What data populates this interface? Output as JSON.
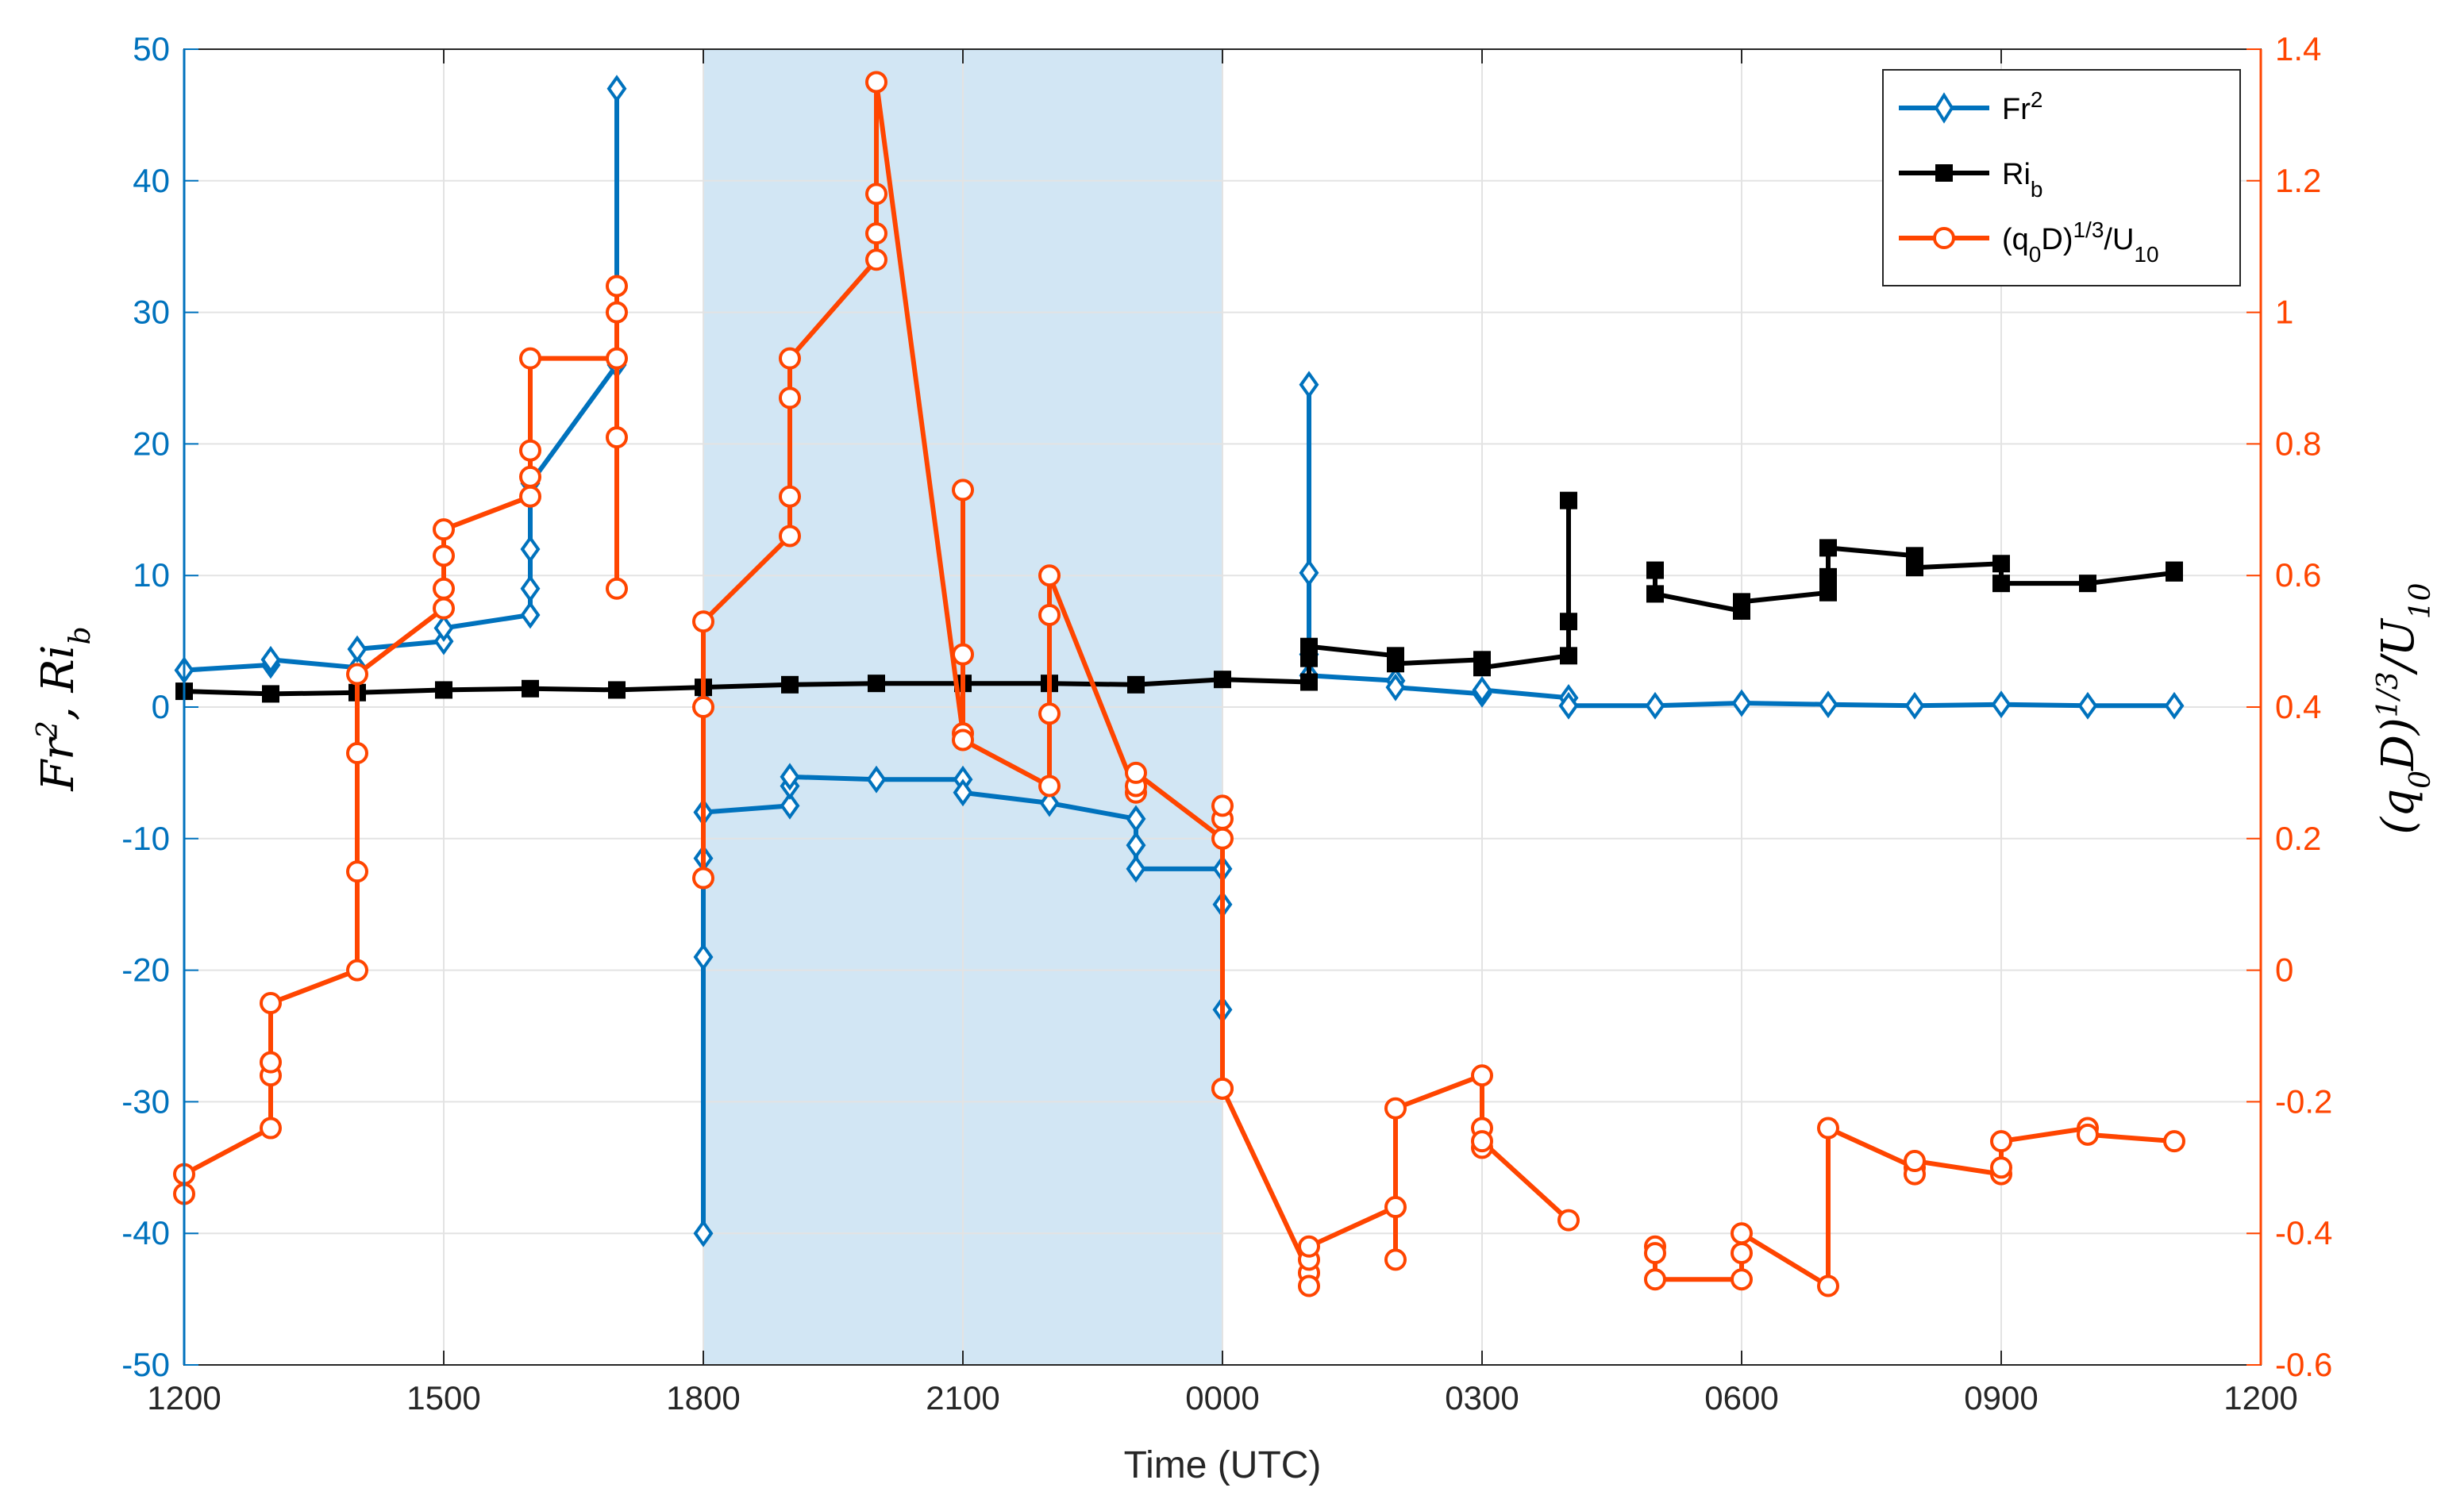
{
  "chart_data": {
    "type": "line",
    "title": "",
    "xlabel": "Time (UTC)",
    "x_range_hours": [
      0,
      24
    ],
    "x_tick_labels": [
      "1200",
      "1500",
      "1800",
      "2100",
      "0000",
      "0300",
      "0600",
      "0900",
      "1200"
    ],
    "y_left": {
      "label_main": "Fr",
      "label_sup": "2",
      "label_sep": ",  ",
      "label_main2": "Ri",
      "label_sub": "b",
      "ylim": [
        -50,
        50
      ],
      "ticks": [
        "50",
        "40",
        "30",
        "20",
        "10",
        "0",
        "-10",
        "-20",
        "-30",
        "-40",
        "-50"
      ],
      "color": "#0072BD"
    },
    "y_right": {
      "label_open": "(q",
      "label_sub0": "0",
      "label_mid": "D)",
      "label_sup": "1/3",
      "label_slash": "/U",
      "label_sub10": "10",
      "ylim": [
        -0.6,
        1.4
      ],
      "ticks": [
        "1.4",
        "1.2",
        "1",
        "0.8",
        "0.6",
        "0.4",
        "0.2",
        "0",
        "-0.2",
        "-0.4",
        "-0.6"
      ],
      "color": "#FF4500"
    },
    "shaded_interval_hours": [
      6.0,
      12.0
    ],
    "shade_color": "#d2e6f4",
    "legend": {
      "position": "top-right",
      "fr_main": "Fr",
      "fr_sup": "2",
      "ri_main": "Ri",
      "ri_sub": "b",
      "q_open": "(q",
      "q_sub0": "0",
      "q_mid": "D)",
      "q_sup": "1/3",
      "q_slash": "/U",
      "q_sub10": "10"
    },
    "series": [
      {
        "name": "Fr2",
        "axis": "left",
        "color": "#0072BD",
        "marker": "diamond",
        "segments": [
          [
            [
              0,
              2.8
            ],
            [
              1,
              3.2
            ],
            [
              1,
              3.6
            ],
            [
              2,
              3.0
            ],
            [
              2,
              4.4
            ],
            [
              3,
              5.0
            ],
            [
              3,
              6.0
            ],
            [
              4,
              7.0
            ],
            [
              4,
              9.0
            ],
            [
              4,
              12.0
            ],
            [
              4,
              17.0
            ],
            [
              5,
              26.0
            ],
            [
              5,
              47.0
            ]
          ],
          [
            [
              6,
              0.3
            ],
            [
              6,
              -8.0
            ],
            [
              6,
              -11.5
            ],
            [
              6,
              -19.0
            ],
            [
              6,
              -40.0
            ]
          ],
          [
            [
              6,
              -8.0
            ],
            [
              7,
              -7.5
            ],
            [
              7,
              -6.0
            ],
            [
              7,
              -5.3
            ],
            [
              8,
              -5.5
            ],
            [
              9,
              -5.5
            ],
            [
              9,
              -6.5
            ],
            [
              10,
              -7.3
            ],
            [
              11,
              -8.5
            ],
            [
              11,
              -10.5
            ],
            [
              11,
              -12.3
            ],
            [
              12,
              -12.3
            ],
            [
              12,
              -15.0
            ],
            [
              12,
              -23.0
            ]
          ],
          [
            [
              13,
              4.0
            ],
            [
              13,
              10.2
            ],
            [
              13,
              24.5
            ]
          ],
          [
            [
              13,
              2.4
            ],
            [
              14,
              2.0
            ],
            [
              14,
              1.5
            ],
            [
              15,
              1.0
            ],
            [
              15,
              1.3
            ],
            [
              16,
              0.7
            ],
            [
              16,
              0.1
            ],
            [
              17,
              0.1
            ],
            [
              18,
              0.3
            ],
            [
              19,
              0.2
            ],
            [
              20,
              0.1
            ],
            [
              21,
              0.2
            ],
            [
              22,
              0.1
            ],
            [
              23,
              0.1
            ]
          ]
        ]
      },
      {
        "name": "Rib",
        "axis": "left",
        "color": "#000000",
        "marker": "square",
        "segments": [
          [
            [
              0,
              1.2
            ],
            [
              1,
              1.0
            ],
            [
              2,
              1.1
            ],
            [
              3,
              1.3
            ],
            [
              4,
              1.4
            ],
            [
              5,
              1.3
            ],
            [
              6,
              1.5
            ],
            [
              7,
              1.7
            ],
            [
              8,
              1.8
            ],
            [
              9,
              1.8
            ],
            [
              10,
              1.8
            ],
            [
              11,
              1.7
            ],
            [
              12,
              2.1
            ],
            [
              13,
              1.9
            ],
            [
              13,
              3.7
            ],
            [
              13,
              4.6
            ],
            [
              14,
              3.9
            ],
            [
              14,
              3.3
            ],
            [
              15,
              3.6
            ],
            [
              15,
              3.0
            ],
            [
              16,
              3.9
            ],
            [
              16,
              6.5
            ],
            [
              16,
              15.7
            ]
          ],
          [
            [
              17,
              10.4
            ],
            [
              17,
              8.6
            ],
            [
              18,
              7.3
            ],
            [
              18,
              8.0
            ],
            [
              19,
              8.7
            ],
            [
              19,
              9.9
            ],
            [
              19,
              12.1
            ],
            [
              20,
              11.5
            ],
            [
              20,
              10.6
            ],
            [
              21,
              10.9
            ],
            [
              21,
              9.4
            ],
            [
              22,
              9.4
            ],
            [
              23,
              10.2
            ],
            [
              23,
              10.4
            ]
          ]
        ]
      },
      {
        "name": "q0D",
        "axis": "right",
        "color": "#FF4500",
        "marker": "circle",
        "segments": [
          [
            [
              0,
              -0.34
            ],
            [
              0,
              -0.31
            ],
            [
              1,
              -0.24
            ],
            [
              1,
              -0.16
            ],
            [
              1,
              -0.14
            ],
            [
              1,
              -0.05
            ],
            [
              2,
              0.0
            ],
            [
              2,
              0.15
            ],
            [
              2,
              0.33
            ],
            [
              2,
              0.45
            ],
            [
              3,
              0.55
            ],
            [
              3,
              0.58
            ],
            [
              3,
              0.63
            ],
            [
              3,
              0.67
            ],
            [
              4,
              0.72
            ],
            [
              4,
              0.75
            ],
            [
              4,
              0.79
            ],
            [
              4,
              0.93
            ],
            [
              5,
              0.93
            ],
            [
              5,
              1.0
            ],
            [
              5,
              1.04
            ],
            [
              5,
              0.81
            ],
            [
              5,
              0.58
            ]
          ],
          [
            [
              6,
              0.14
            ],
            [
              6,
              0.4
            ],
            [
              6,
              0.53
            ],
            [
              7,
              0.66
            ],
            [
              7,
              0.72
            ],
            [
              7,
              0.87
            ],
            [
              7,
              0.93
            ],
            [
              8,
              1.08
            ],
            [
              8,
              1.12
            ],
            [
              8,
              1.18
            ],
            [
              8,
              1.35
            ],
            [
              9,
              0.36
            ],
            [
              9,
              0.48
            ],
            [
              9,
              0.73
            ],
            [
              9,
              0.35
            ],
            [
              10,
              0.28
            ],
            [
              10,
              0.39
            ],
            [
              10,
              0.54
            ],
            [
              10,
              0.6
            ],
            [
              11,
              0.27
            ],
            [
              11,
              0.28
            ],
            [
              11,
              0.3
            ],
            [
              12,
              0.2
            ],
            [
              12,
              0.23
            ],
            [
              12,
              0.25
            ],
            [
              12,
              -0.18
            ]
          ],
          [
            [
              12,
              -0.18
            ],
            [
              13,
              -0.46
            ],
            [
              13,
              -0.48
            ],
            [
              13,
              -0.44
            ],
            [
              13,
              -0.42
            ],
            [
              14,
              -0.36
            ],
            [
              14,
              -0.44
            ],
            [
              14,
              -0.21
            ],
            [
              15,
              -0.16
            ],
            [
              15,
              -0.24
            ],
            [
              15,
              -0.27
            ],
            [
              15,
              -0.26
            ],
            [
              16,
              -0.38
            ]
          ],
          [
            [
              17,
              -0.42
            ],
            [
              17,
              -0.43
            ],
            [
              17,
              -0.47
            ],
            [
              18,
              -0.47
            ],
            [
              18,
              -0.43
            ],
            [
              18,
              -0.4
            ],
            [
              19,
              -0.48
            ],
            [
              19,
              -0.24
            ],
            [
              20,
              -0.3
            ],
            [
              20,
              -0.31
            ],
            [
              20,
              -0.29
            ],
            [
              21,
              -0.31
            ],
            [
              21,
              -0.3
            ],
            [
              21,
              -0.26
            ],
            [
              22,
              -0.24
            ],
            [
              22,
              -0.25
            ],
            [
              23,
              -0.26
            ]
          ]
        ]
      }
    ]
  }
}
